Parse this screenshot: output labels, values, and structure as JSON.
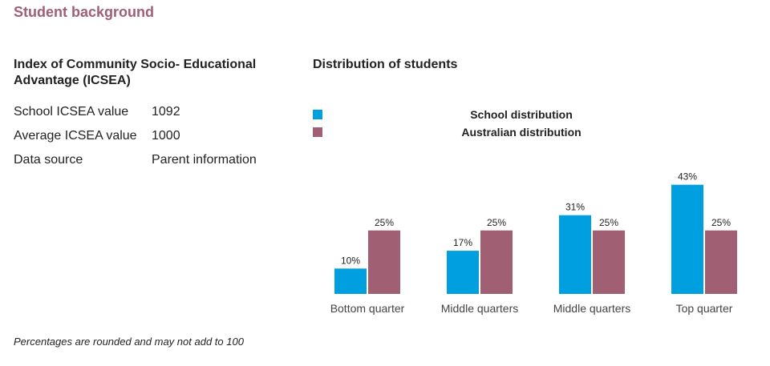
{
  "page": {
    "title": "Student background",
    "icsea_heading": "Index of Community Socio- Educational Advantage (ICSEA)",
    "rows": [
      {
        "label": "School ICSEA value",
        "value": "1092"
      },
      {
        "label": "Average ICSEA value",
        "value": "1000"
      },
      {
        "label": "Data source",
        "value": "Parent information"
      }
    ],
    "footnote": "Percentages are rounded and may not add to 100"
  },
  "colors": {
    "school": "#009fdf",
    "australian": "#a05f72"
  },
  "chart_data": {
    "type": "bar",
    "title": "Distribution of students",
    "categories": [
      "Bottom quarter",
      "Middle quarters",
      "Middle quarters",
      "Top quarter"
    ],
    "series": [
      {
        "name": "School distribution",
        "values": [
          10,
          17,
          31,
          43
        ],
        "labels": [
          "10%",
          "17%",
          "31%",
          "43%"
        ]
      },
      {
        "name": "Australian distribution",
        "values": [
          25,
          25,
          25,
          25
        ],
        "labels": [
          "25%",
          "25%",
          "25%",
          "25%"
        ]
      }
    ],
    "ylim": [
      0,
      50
    ],
    "grid": false,
    "legend_position": "top"
  }
}
